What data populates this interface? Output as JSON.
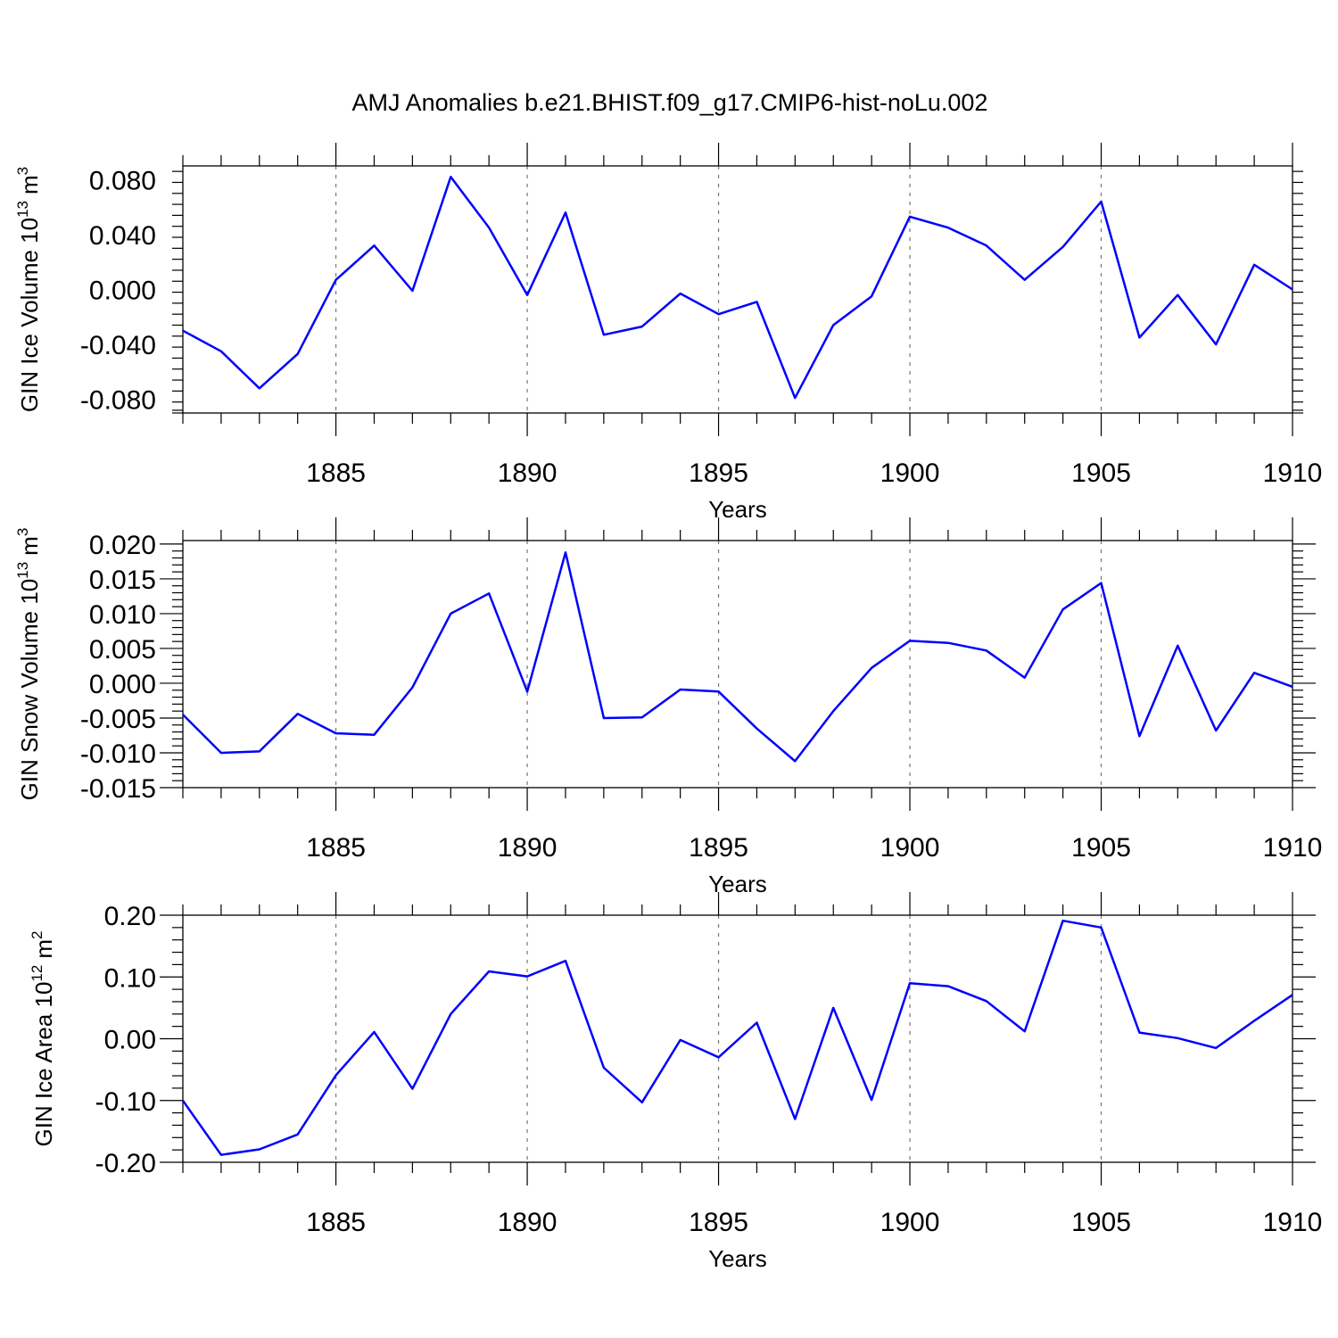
{
  "title": "AMJ Anomalies b.e21.BHIST.f09_g17.CMIP6-hist-noLu.002",
  "line_color": "#0000ff",
  "chart_data": [
    {
      "type": "line",
      "title": "AMJ Anomalies b.e21.BHIST.f09_g17.CMIP6-hist-noLu.002",
      "xlabel": "Years",
      "ylabel": "GIN Ice Volume 10^13 m^3",
      "ylabel_base": "GIN Ice Volume 10",
      "ylabel_exp": "13",
      "ylabel_unit": "m",
      "ylabel_unit_exp": "3",
      "xlim": [
        1881,
        1910
      ],
      "ylim": [
        -0.09,
        0.09
      ],
      "xticks": [
        1885,
        1890,
        1895,
        1900,
        1905,
        1910
      ],
      "xtick_labels": [
        "1885",
        "1890",
        "1895",
        "1900",
        "1905",
        "1910"
      ],
      "yticks": [
        -0.08,
        -0.04,
        0.0,
        0.04,
        0.08
      ],
      "ytick_labels": [
        "-0.080",
        "-0.040",
        "0.000",
        "0.040",
        "0.080"
      ],
      "grid": "vertical dashed at major x ticks",
      "series": [
        {
          "name": "GIN Ice Volume",
          "x": [
            1881,
            1882,
            1883,
            1884,
            1885,
            1886,
            1887,
            1888,
            1889,
            1890,
            1891,
            1892,
            1893,
            1894,
            1895,
            1896,
            1897,
            1898,
            1899,
            1900,
            1901,
            1902,
            1903,
            1904,
            1905,
            1906,
            1907,
            1908,
            1909,
            1910
          ],
          "values": [
            -0.03,
            -0.045,
            -0.072,
            -0.047,
            0.007,
            0.032,
            -0.001,
            0.082,
            0.045,
            -0.004,
            0.056,
            -0.033,
            -0.027,
            -0.003,
            -0.018,
            -0.009,
            -0.079,
            -0.026,
            -0.005,
            0.053,
            0.045,
            0.032,
            0.007,
            0.031,
            0.064,
            -0.035,
            -0.004,
            -0.04,
            0.018,
            0.0
          ]
        }
      ]
    },
    {
      "type": "line",
      "xlabel": "Years",
      "ylabel": "GIN Snow Volume 10^13 m^3",
      "ylabel_base": "GIN Snow Volume 10",
      "ylabel_exp": "13",
      "ylabel_unit": "m",
      "ylabel_unit_exp": "3",
      "xlim": [
        1881,
        1910
      ],
      "ylim": [
        -0.015,
        0.0205
      ],
      "xticks": [
        1885,
        1890,
        1895,
        1900,
        1905,
        1910
      ],
      "xtick_labels": [
        "1885",
        "1890",
        "1895",
        "1900",
        "1905",
        "1910"
      ],
      "yticks": [
        -0.015,
        -0.01,
        -0.005,
        0.0,
        0.005,
        0.01,
        0.015,
        0.02
      ],
      "ytick_labels": [
        "-0.015",
        "-0.010",
        "-0.005",
        "0.000",
        "0.005",
        "0.010",
        "0.015",
        "0.020"
      ],
      "grid": "vertical dashed at major x ticks",
      "series": [
        {
          "name": "GIN Snow Volume",
          "x": [
            1881,
            1882,
            1883,
            1884,
            1885,
            1886,
            1887,
            1888,
            1889,
            1890,
            1891,
            1892,
            1893,
            1894,
            1895,
            1896,
            1897,
            1898,
            1899,
            1900,
            1901,
            1902,
            1903,
            1904,
            1905,
            1906,
            1907,
            1908,
            1909,
            1910
          ],
          "values": [
            -0.0045,
            -0.01,
            -0.0098,
            -0.0044,
            -0.0072,
            -0.0074,
            -0.0006,
            0.01,
            0.0129,
            -0.0012,
            0.0188,
            -0.005,
            -0.0049,
            -0.0009,
            -0.0012,
            -0.0065,
            -0.0112,
            -0.004,
            0.0022,
            0.0061,
            0.0058,
            0.0047,
            0.0008,
            0.0106,
            0.0144,
            -0.0076,
            0.0054,
            -0.0068,
            0.0015,
            -0.0005
          ]
        }
      ]
    },
    {
      "type": "line",
      "xlabel": "Years",
      "ylabel": "GIN Ice Area 10^12 m^2",
      "ylabel_base": "GIN Ice Area 10",
      "ylabel_exp": "12",
      "ylabel_unit": "m",
      "ylabel_unit_exp": "2",
      "xlim": [
        1881,
        1910
      ],
      "ylim": [
        -0.2,
        0.2
      ],
      "xticks": [
        1885,
        1890,
        1895,
        1900,
        1905,
        1910
      ],
      "xtick_labels": [
        "1885",
        "1890",
        "1895",
        "1900",
        "1905",
        "1910"
      ],
      "yticks": [
        -0.2,
        -0.1,
        0.0,
        0.1,
        0.2
      ],
      "ytick_labels": [
        "-0.20",
        "-0.10",
        "0.00",
        "0.10",
        "0.20"
      ],
      "grid": "vertical dashed at major x ticks",
      "series": [
        {
          "name": "GIN Ice Area",
          "x": [
            1881,
            1882,
            1883,
            1884,
            1885,
            1886,
            1887,
            1888,
            1889,
            1890,
            1891,
            1892,
            1893,
            1894,
            1895,
            1896,
            1897,
            1898,
            1899,
            1900,
            1901,
            1902,
            1903,
            1904,
            1905,
            1906,
            1907,
            1908,
            1909,
            1910
          ],
          "values": [
            -0.1,
            -0.188,
            -0.179,
            -0.155,
            -0.059,
            0.011,
            -0.081,
            0.04,
            0.109,
            0.101,
            0.126,
            -0.047,
            -0.103,
            -0.002,
            -0.03,
            0.026,
            -0.13,
            0.05,
            -0.099,
            0.09,
            0.085,
            0.061,
            0.012,
            0.191,
            0.18,
            0.01,
            0.001,
            -0.015,
            0.029,
            0.071
          ]
        }
      ]
    }
  ]
}
